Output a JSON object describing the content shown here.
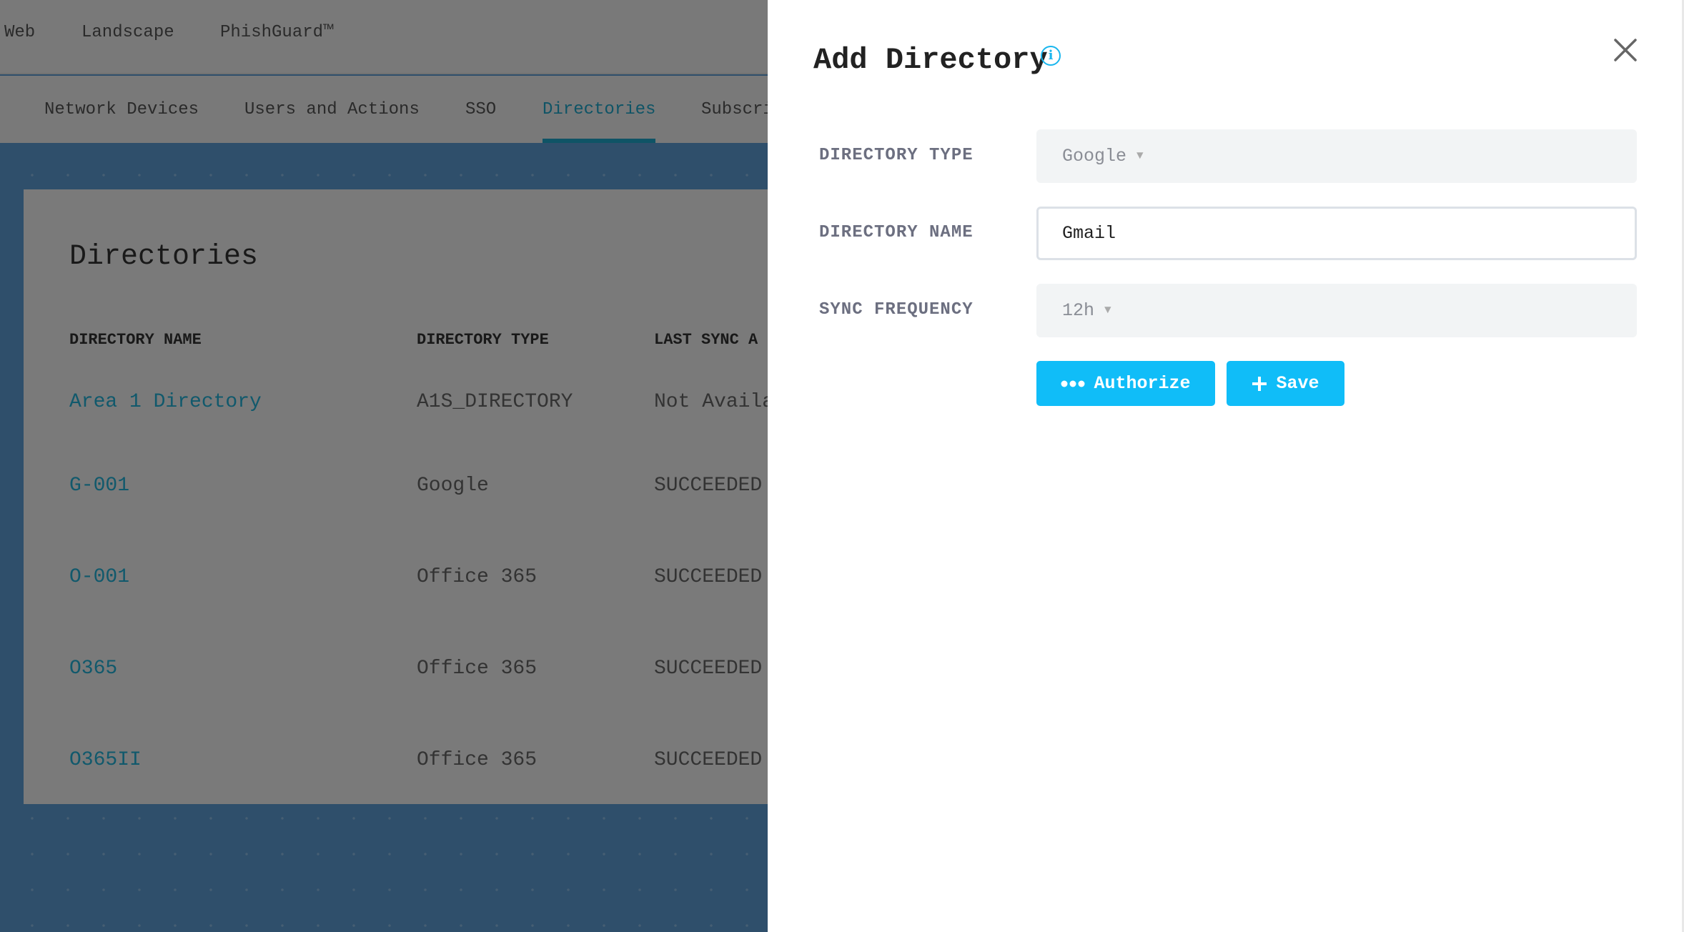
{
  "top_nav": [
    "Web",
    "Landscape",
    "PhishGuard™"
  ],
  "tabs": {
    "items": [
      "Network Devices",
      "Users and Actions",
      "SSO",
      "Directories",
      "Subscri"
    ],
    "active": "Directories"
  },
  "card": {
    "title": "Directories",
    "columns": [
      "DIRECTORY NAME",
      "DIRECTORY TYPE",
      "LAST SYNC A"
    ],
    "rows": [
      [
        "Area 1 Directory",
        "A1S_DIRECTORY",
        "Not Availa"
      ],
      [
        "G-001",
        "Google",
        "SUCCEEDED"
      ],
      [
        "O-001",
        "Office 365",
        "SUCCEEDED"
      ],
      [
        "O365",
        "Office 365",
        "SUCCEEDED"
      ],
      [
        "O365II",
        "Office 365",
        "SUCCEEDED"
      ]
    ]
  },
  "panel": {
    "title": "Add Directory",
    "info_icon": "i",
    "fields": {
      "type": {
        "label": "DIRECTORY TYPE",
        "value": "Google"
      },
      "name": {
        "label": "DIRECTORY NAME",
        "value": "Gmail"
      },
      "frequency": {
        "label": "SYNC FREQUENCY",
        "value": "12h"
      }
    },
    "authorize_label": "Authorize",
    "save_label": "Save"
  },
  "colors": {
    "accent": "#10bdf8",
    "link": "#22b2d8"
  }
}
